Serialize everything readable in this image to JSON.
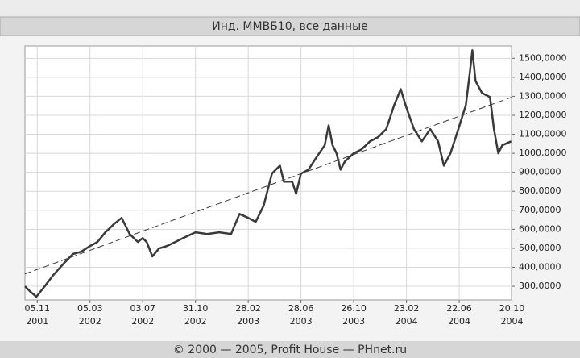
{
  "chart_data": {
    "type": "line",
    "title": "Инд. ММВБ10, все данные",
    "footer": "© 2000 — 2005, Profit House — PHnet.ru",
    "xlim": [
      "2001-10-08",
      "2004-10-19"
    ],
    "ylim": [
      228,
      1565
    ],
    "grid": true,
    "xticks": [
      {
        "value": "2001-11-05",
        "label": [
          "05.11",
          "2001"
        ]
      },
      {
        "value": "2002-03-05",
        "label": [
          "05.03",
          "2002"
        ]
      },
      {
        "value": "2002-07-03",
        "label": [
          "03.07",
          "2002"
        ]
      },
      {
        "value": "2002-10-31",
        "label": [
          "31.10",
          "2002"
        ]
      },
      {
        "value": "2003-02-28",
        "label": [
          "28.02",
          "2003"
        ]
      },
      {
        "value": "2003-06-28",
        "label": [
          "28.06",
          "2003"
        ]
      },
      {
        "value": "2003-10-26",
        "label": [
          "26.10",
          "2003"
        ]
      },
      {
        "value": "2004-02-23",
        "label": [
          "23.02",
          "2004"
        ]
      },
      {
        "value": "2004-06-22",
        "label": [
          "22.06",
          "2004"
        ]
      },
      {
        "value": "2004-10-20",
        "label": [
          "20.10",
          "2004"
        ]
      }
    ],
    "yticks": [
      {
        "value": 300,
        "label": "300,0000"
      },
      {
        "value": 400,
        "label": "400,0000"
      },
      {
        "value": 500,
        "label": "500,0000"
      },
      {
        "value": 600,
        "label": "600,0000"
      },
      {
        "value": 700,
        "label": "700,0000"
      },
      {
        "value": 800,
        "label": "800,0000"
      },
      {
        "value": 900,
        "label": "900,0000"
      },
      {
        "value": 1000,
        "label": "1000,0000"
      },
      {
        "value": 1100,
        "label": "1100,0000"
      },
      {
        "value": 1200,
        "label": "1200,0000"
      },
      {
        "value": 1300,
        "label": "1300,0000"
      },
      {
        "value": 1400,
        "label": "1400,0000"
      },
      {
        "value": 1500,
        "label": "1500,0000"
      }
    ],
    "x": [
      "2001-10-08",
      "2001-10-21",
      "2001-11-03",
      "2001-11-22",
      "2001-12-10",
      "2002-01-07",
      "2002-01-25",
      "2002-02-13",
      "2002-03-05",
      "2002-03-22",
      "2002-04-09",
      "2002-04-28",
      "2002-05-16",
      "2002-05-25",
      "2002-06-03",
      "2002-06-22",
      "2002-07-03",
      "2002-07-12",
      "2002-07-25",
      "2002-08-09",
      "2002-08-27",
      "2002-09-15",
      "2002-10-03",
      "2002-10-31",
      "2002-11-26",
      "2002-12-24",
      "2003-01-20",
      "2003-02-08",
      "2003-02-28",
      "2003-03-17",
      "2003-04-04",
      "2003-04-23",
      "2003-05-11",
      "2003-05-20",
      "2003-06-08",
      "2003-06-17",
      "2003-06-28",
      "2003-07-15",
      "2003-08-02",
      "2003-08-21",
      "2003-08-30",
      "2003-09-08",
      "2003-09-17",
      "2003-09-26",
      "2003-10-06",
      "2003-10-26",
      "2003-11-13",
      "2003-12-02",
      "2003-12-20",
      "2004-01-08",
      "2004-01-26",
      "2004-02-10",
      "2004-02-21",
      "2004-03-11",
      "2004-03-29",
      "2004-04-17",
      "2004-05-05",
      "2004-05-18",
      "2004-06-02",
      "2004-06-20",
      "2004-07-07",
      "2004-07-16",
      "2004-07-22",
      "2004-07-29",
      "2004-08-13",
      "2004-08-31",
      "2004-09-09",
      "2004-09-19",
      "2004-09-28",
      "2004-10-18"
    ],
    "series": [
      {
        "color": "#3a3a3a",
        "values": [
          300,
          270,
          245,
          300,
          355,
          427,
          470,
          482,
          512,
          533,
          584,
          626,
          660,
          618,
          575,
          533,
          554,
          533,
          457,
          499,
          512,
          533,
          554,
          584,
          575,
          584,
          575,
          681,
          660,
          639,
          724,
          893,
          935,
          851,
          851,
          787,
          893,
          914,
          978,
          1042,
          1147,
          1042,
          1000,
          914,
          957,
          1000,
          1021,
          1063,
          1084,
          1127,
          1253,
          1338,
          1253,
          1127,
          1063,
          1127,
          1063,
          935,
          1000,
          1127,
          1253,
          1423,
          1542,
          1381,
          1317,
          1296,
          1127,
          1000,
          1042,
          1063
        ]
      }
    ],
    "trend": {
      "x": [
        "2001-10-08",
        "2004-10-19"
      ],
      "values": [
        365,
        1295
      ],
      "color": "#3a3a3a"
    }
  }
}
